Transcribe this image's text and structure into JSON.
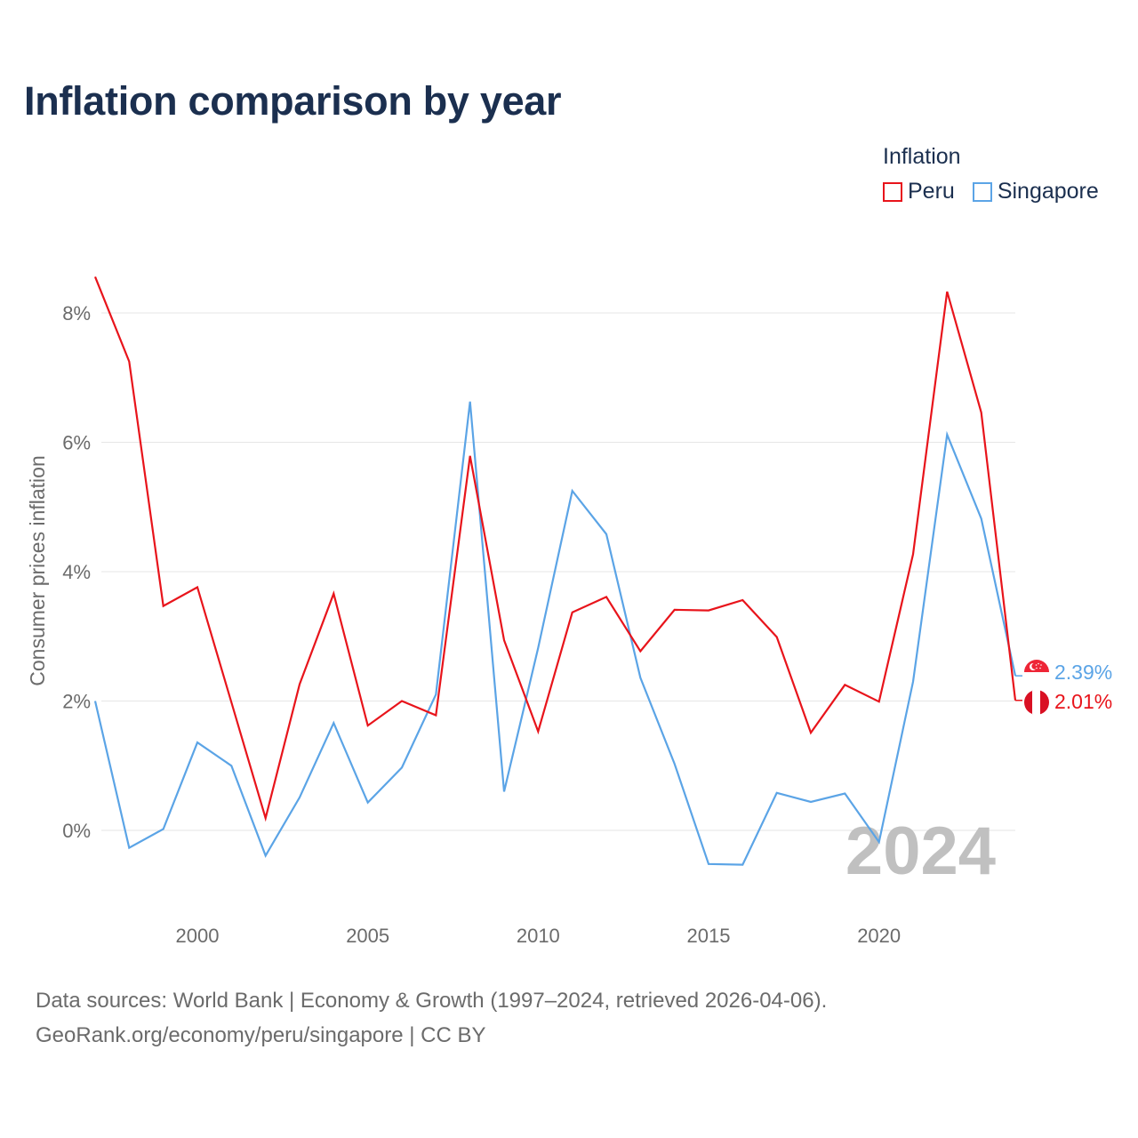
{
  "title": "Inflation comparison by year",
  "legend": {
    "title": "Inflation",
    "items": [
      {
        "label": "Peru",
        "color": "#e8141b"
      },
      {
        "label": "Singapore",
        "color": "#5ba4e6"
      }
    ]
  },
  "footer": {
    "line1": "Data sources: World Bank | Economy & Growth (1997–2024, retrieved 2026-04-06).",
    "line2": "GeoRank.org/economy/peru/singapore | CC BY"
  },
  "chart_data": {
    "type": "line",
    "title": "Inflation comparison by year",
    "xlabel": "",
    "ylabel": "Consumer prices inflation",
    "xlim": [
      1997,
      2024
    ],
    "ylim": [
      -1.0,
      8.6
    ],
    "grid": true,
    "legend_position": "top-right",
    "x_ticks": [
      2000,
      2005,
      2010,
      2015,
      2020
    ],
    "x_tick_labels": [
      "2000",
      "2005",
      "2010",
      "2015",
      "2020"
    ],
    "y_ticks": [
      0,
      2,
      4,
      6,
      8
    ],
    "y_tick_labels": [
      "0%",
      "2%",
      "4%",
      "6%",
      "8%"
    ],
    "current_year_label": "2024",
    "x": [
      1997,
      1998,
      1999,
      2000,
      2001,
      2002,
      2003,
      2004,
      2005,
      2006,
      2007,
      2008,
      2009,
      2010,
      2011,
      2012,
      2013,
      2014,
      2015,
      2016,
      2017,
      2018,
      2019,
      2020,
      2021,
      2022,
      2023,
      2024
    ],
    "series": [
      {
        "name": "Peru",
        "color": "#e8141b",
        "end_label": "2.01%",
        "values": [
          8.56,
          7.25,
          3.47,
          3.76,
          1.98,
          0.19,
          2.26,
          3.66,
          1.62,
          2.0,
          1.78,
          5.79,
          2.94,
          1.53,
          3.37,
          3.61,
          2.77,
          3.41,
          3.4,
          3.56,
          2.99,
          1.51,
          2.25,
          1.99,
          4.27,
          8.33,
          6.46,
          2.01
        ]
      },
      {
        "name": "Singapore",
        "color": "#5ba4e6",
        "end_label": "2.39%",
        "values": [
          2.0,
          -0.27,
          0.02,
          1.36,
          1.0,
          -0.39,
          0.51,
          1.66,
          0.43,
          0.97,
          2.1,
          6.63,
          0.6,
          2.82,
          5.25,
          4.58,
          2.36,
          1.03,
          -0.52,
          -0.53,
          0.58,
          0.44,
          0.57,
          -0.18,
          2.3,
          6.12,
          4.82,
          2.39
        ]
      }
    ]
  }
}
